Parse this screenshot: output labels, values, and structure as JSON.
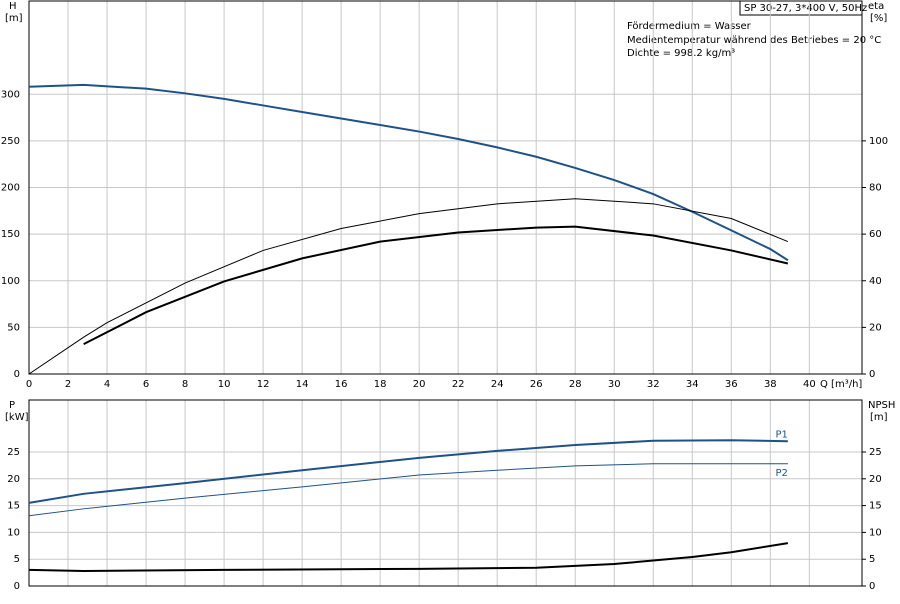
{
  "info": {
    "model": "SP 30-27, 3*400 V, 50Hz",
    "lines": [
      "Fördermedium = Wasser",
      "Medientemperatur während des Betriebes = 20 °C",
      "Dichte = 998.2 kg/m³"
    ]
  },
  "chart_data": [
    {
      "type": "line",
      "ylabel": "H",
      "yunit": "[m]",
      "y2label": "eta",
      "y2unit": "[%]",
      "xlabel": "Q [m³/h]",
      "xlim": [
        0,
        42.7
      ],
      "xticks": [
        0,
        2,
        4,
        6,
        8,
        10,
        12,
        14,
        16,
        18,
        20,
        22,
        24,
        26,
        28,
        30,
        32,
        34,
        36,
        38,
        40
      ],
      "ylim": [
        0,
        400
      ],
      "yticks": [
        0,
        50,
        100,
        150,
        200,
        250,
        300
      ],
      "y2lim": [
        0,
        160
      ],
      "y2ticks": [
        0,
        20,
        40,
        60,
        80,
        100
      ],
      "grid": true,
      "series": [
        {
          "color": "#1f5288",
          "line_width": 2,
          "x": [
            0,
            2.8,
            6,
            8,
            10,
            12,
            14,
            16,
            18,
            20,
            22,
            24,
            26,
            28,
            30,
            32,
            34,
            36,
            38,
            38.9
          ],
          "values": [
            308,
            310,
            306,
            301,
            295,
            288,
            281,
            274,
            267,
            260,
            252,
            243,
            233,
            221,
            208,
            193,
            174,
            154,
            134,
            122
          ]
        },
        {
          "color": "#000000",
          "line_width": 1,
          "axis": "y2",
          "x": [
            0,
            2.8,
            4,
            8,
            12,
            16,
            20,
            24,
            28,
            32,
            36,
            38.9
          ],
          "values": [
            0,
            15.8,
            22,
            39,
            53,
            62.4,
            68.8,
            73,
            75.2,
            73,
            66.7,
            56.8
          ]
        },
        {
          "color": "#000000",
          "line_width": 2,
          "axis": "y2",
          "x": [
            2.8,
            6,
            10,
            14,
            18,
            22,
            26,
            28,
            32,
            36,
            38.9
          ],
          "values": [
            12.8,
            26.5,
            39.7,
            49.6,
            56.8,
            60.7,
            62.8,
            63.2,
            59.4,
            53,
            47.4
          ]
        }
      ]
    },
    {
      "type": "line",
      "ylabel": "P",
      "yunit": "[kW]",
      "y2label": "NPSH",
      "y2unit": "[m]",
      "xlim": [
        0,
        42.7
      ],
      "ylim": [
        0,
        34.7
      ],
      "yticks": [
        0,
        5,
        10,
        15,
        20,
        25
      ],
      "y2lim": [
        0,
        34.7
      ],
      "y2ticks": [
        0,
        5,
        10,
        15,
        20,
        25
      ],
      "grid": true,
      "series": [
        {
          "name": "P1",
          "color": "#1f5288",
          "line_width": 2,
          "x": [
            0,
            2.8,
            8,
            14,
            20,
            24,
            28,
            32,
            36,
            38.9
          ],
          "values": [
            15.5,
            17.2,
            19.2,
            21.6,
            23.9,
            25.2,
            26.3,
            27.1,
            27.2,
            27.0
          ]
        },
        {
          "name": "P2",
          "color": "#1f5288",
          "line_width": 1,
          "x": [
            0,
            2.8,
            8,
            14,
            20,
            24,
            28,
            32,
            36,
            38.9
          ],
          "values": [
            13.1,
            14.4,
            16.4,
            18.5,
            20.7,
            21.6,
            22.4,
            22.8,
            22.8,
            22.8
          ]
        },
        {
          "color": "#000000",
          "line_width": 2,
          "axis": "y2",
          "x": [
            0,
            2.8,
            10,
            20,
            26,
            30,
            34,
            36,
            38.9
          ],
          "values": [
            3.0,
            2.8,
            3.0,
            3.2,
            3.4,
            4.1,
            5.4,
            6.3,
            8.0
          ]
        }
      ]
    }
  ]
}
